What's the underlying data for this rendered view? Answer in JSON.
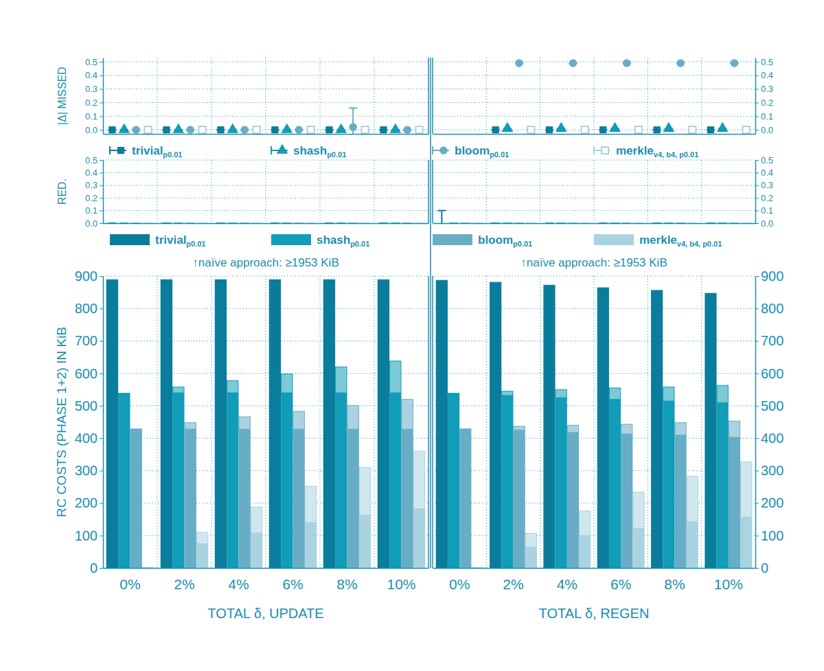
{
  "chart_data": [
    {
      "type": "scatter",
      "ylabel": "|Δ| MISSED",
      "ylim": [
        -0.03,
        0.53
      ],
      "yticks": [
        {
          "value": 0,
          "label": "0.0"
        },
        0.1,
        0.2,
        0.3,
        0.4,
        0.5
      ],
      "grid": true,
      "legend": "bottom",
      "tick_labels": "y",
      "series": [
        {
          "name": "trivial",
          "subscript": "p0.01",
          "color": "#0b7d9c",
          "marker": "square",
          "values": [
            [
              0,
              0,
              0,
              0,
              0,
              0
            ],
            [
              null,
              0,
              0,
              0,
              0,
              0
            ]
          ],
          "errors": [
            [
              0,
              0,
              0,
              0,
              0,
              0
            ],
            [
              null,
              0,
              0,
              0,
              0,
              0
            ]
          ]
        },
        {
          "name": "shash",
          "subscript": "p0.01",
          "color": "#119cb8",
          "marker": "triangle",
          "values": [
            [
              0,
              0,
              0,
              0,
              0,
              0
            ],
            [
              null,
              0.01,
              0.01,
              0.01,
              0.01,
              0.01
            ]
          ],
          "errors": [
            [
              0,
              0,
              0,
              0,
              0,
              0
            ],
            [
              null,
              0,
              0,
              0,
              0,
              0
            ]
          ]
        },
        {
          "name": "bloom",
          "subscript": "p0.01",
          "color": "#68adc6",
          "marker": "circle",
          "values": [
            [
              0,
              0,
              0,
              0,
              0.02,
              0
            ],
            [
              null,
              0.49,
              0.49,
              0.49,
              0.49,
              0.49
            ]
          ],
          "errors": [
            [
              0,
              0,
              0,
              0,
              0.14,
              0
            ],
            [
              null,
              0,
              0,
              0,
              0,
              0
            ]
          ]
        },
        {
          "name": "merkle",
          "subscript": "v4, b4, p0.01",
          "color": "#a9d3e1",
          "marker": "square-open",
          "values": [
            [
              0,
              0,
              0,
              0,
              0,
              0
            ],
            [
              null,
              0,
              0,
              0,
              0,
              0
            ]
          ],
          "errors": [
            [
              0,
              0,
              0,
              0,
              0,
              0
            ],
            [
              null,
              0,
              0,
              0,
              0,
              0
            ]
          ]
        }
      ]
    },
    {
      "type": "bar",
      "ylabel": "RED.",
      "ylim": [
        0,
        0.5
      ],
      "yticks": [
        {
          "value": 0,
          "label": "0.0"
        },
        0.1,
        0.2,
        0.3,
        0.4,
        0.5
      ],
      "grid": true,
      "legend": "bottom",
      "tick_labels": "y",
      "series": [
        {
          "name": "trivial",
          "subscript": "p0.01",
          "color": "#0b7d9c",
          "values": [
            [
              0,
              0,
              0,
              0,
              0,
              0
            ],
            [
              0,
              0,
              0,
              0,
              0,
              0
            ]
          ],
          "errors": [
            [
              0,
              0,
              0,
              0,
              0,
              0
            ],
            [
              0.1,
              0,
              0,
              0,
              0,
              0
            ]
          ]
        },
        {
          "name": "shash",
          "subscript": "p0.01",
          "color": "#119cb8",
          "values": [
            [
              0,
              0,
              0,
              0,
              0,
              0
            ],
            [
              0,
              0,
              0,
              0,
              0,
              0
            ]
          ],
          "errors": [
            [
              0,
              0,
              0,
              0,
              0,
              0
            ],
            [
              0,
              0,
              0,
              0,
              0,
              0
            ]
          ]
        },
        {
          "name": "bloom",
          "subscript": "p0.01",
          "color": "#68adc6",
          "values": [
            [
              0,
              0,
              0,
              0,
              0,
              0
            ],
            [
              0,
              0,
              0,
              0,
              0,
              0
            ]
          ],
          "errors": [
            [
              0,
              0,
              0,
              0,
              0,
              0
            ],
            [
              0,
              0,
              0,
              0,
              0,
              0
            ]
          ]
        },
        {
          "name": "merkle",
          "subscript": "v4, b4, p0.01",
          "color": "#a9d3e1",
          "values": [
            [
              0,
              0,
              0,
              0,
              0,
              0
            ],
            [
              0,
              0,
              0,
              0,
              0,
              0
            ]
          ],
          "errors": [
            [
              0,
              0,
              0,
              0,
              0,
              0
            ],
            [
              0,
              0,
              0,
              0,
              0,
              0
            ]
          ]
        }
      ]
    },
    {
      "type": "bar",
      "stacked": true,
      "ylabel": "RC COSTS (PHASE 1+2) IN KiB",
      "categories": [
        "0%",
        "2%",
        "4%",
        "6%",
        "8%",
        "10%"
      ],
      "panels": [
        {
          "xlabel": "TOTAL δ, UPDATE",
          "annotation": "↑naïve approach: ≥1953 KiB"
        },
        {
          "xlabel": "TOTAL δ, REGEN",
          "annotation": "↑naïve approach: ≥1953 KiB"
        }
      ],
      "ylim": [
        0,
        900
      ],
      "yticks": [
        0,
        100,
        200,
        300,
        400,
        500,
        600,
        700,
        800,
        900
      ],
      "grid": true,
      "series": [
        {
          "color": "#0b7d9c",
          "values": [
            [
              890,
              890,
              890,
              890,
              890,
              890
            ],
            [
              888,
              882,
              873,
              865,
              857,
              848
            ]
          ],
          "upper_values": [
            [
              0,
              0,
              0,
              0,
              0,
              0
            ],
            [
              0,
              0,
              0,
              0,
              0,
              0
            ]
          ]
        },
        {
          "color": "#119cb8",
          "values": [
            [
              540,
              540,
              540,
              540,
              540,
              540
            ],
            [
              540,
              532,
              525,
              520,
              515,
              510
            ]
          ],
          "upper_values": [
            [
              0,
              18,
              38,
              58,
              80,
              98
            ],
            [
              0,
              13,
              25,
              35,
              43,
              53
            ]
          ]
        },
        {
          "color": "#68adc6",
          "values": [
            [
              430,
              428,
              428,
              428,
              428,
              428
            ],
            [
              430,
              425,
              418,
              413,
              410,
              403
            ]
          ],
          "upper_values": [
            [
              0,
              20,
              38,
              55,
              73,
              92
            ],
            [
              0,
              12,
              22,
              30,
              38,
              50
            ]
          ]
        },
        {
          "color": "#a9d3e1",
          "values": [
            [
              3,
              75,
              108,
              140,
              163,
              183
            ],
            [
              3,
              65,
              100,
              122,
              143,
              157
            ]
          ],
          "upper_values": [
            [
              0,
              35,
              80,
              112,
              147,
              177
            ],
            [
              0,
              42,
              76,
              112,
              140,
              170
            ]
          ]
        }
      ]
    }
  ]
}
